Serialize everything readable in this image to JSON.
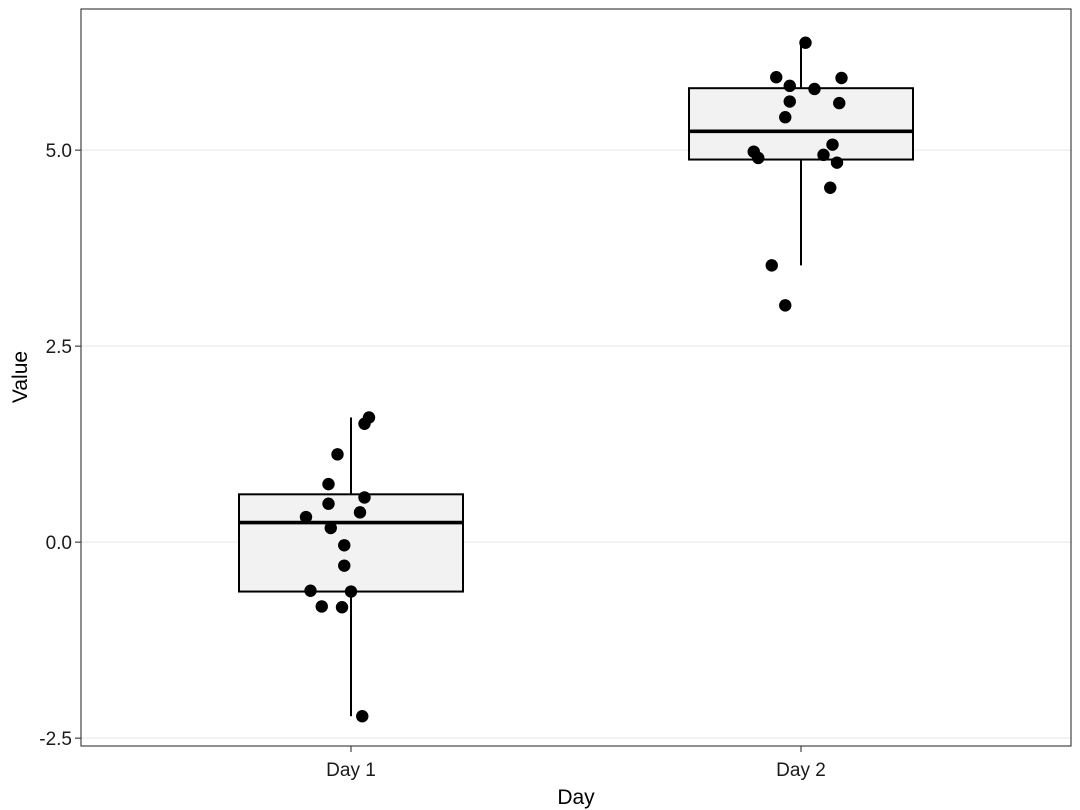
{
  "chart_data": {
    "type": "boxplot",
    "title": "",
    "xlabel": "Day",
    "ylabel": "Value",
    "categories": [
      "Day 1",
      "Day 2"
    ],
    "ylim": [
      -2.6,
      6.8
    ],
    "yticks": [
      -2.5,
      0.0,
      2.5,
      5.0
    ],
    "ytick_labels": [
      "-2.5",
      "0.0",
      "2.5",
      "5.0"
    ],
    "grid": true,
    "legend": "none",
    "box_fill": "#f2f2f2",
    "point_color": "#000000",
    "boxes": [
      {
        "category": "Day 1",
        "whisker_low": -2.22,
        "q1": -0.63,
        "median": 0.25,
        "q3": 0.61,
        "whisker_high": 1.59
      },
      {
        "category": "Day 2",
        "whisker_low": 3.53,
        "q1": 4.88,
        "median": 5.24,
        "q3": 5.79,
        "whisker_high": 6.37
      }
    ],
    "points": [
      {
        "category": "Day 1",
        "jitter": 0.04,
        "y": 1.59
      },
      {
        "category": "Day 1",
        "jitter": 0.03,
        "y": 1.51
      },
      {
        "category": "Day 1",
        "jitter": -0.03,
        "y": 1.12
      },
      {
        "category": "Day 1",
        "jitter": -0.05,
        "y": 0.74
      },
      {
        "category": "Day 1",
        "jitter": 0.03,
        "y": 0.57
      },
      {
        "category": "Day 1",
        "jitter": -0.05,
        "y": 0.49
      },
      {
        "category": "Day 1",
        "jitter": 0.02,
        "y": 0.38
      },
      {
        "category": "Day 1",
        "jitter": -0.1,
        "y": 0.32
      },
      {
        "category": "Day 1",
        "jitter": -0.045,
        "y": 0.18
      },
      {
        "category": "Day 1",
        "jitter": -0.015,
        "y": -0.04
      },
      {
        "category": "Day 1",
        "jitter": -0.015,
        "y": -0.3
      },
      {
        "category": "Day 1",
        "jitter": -0.09,
        "y": -0.62
      },
      {
        "category": "Day 1",
        "jitter": 0.0,
        "y": -0.63
      },
      {
        "category": "Day 1",
        "jitter": -0.065,
        "y": -0.82
      },
      {
        "category": "Day 1",
        "jitter": -0.02,
        "y": -0.83
      },
      {
        "category": "Day 1",
        "jitter": 0.025,
        "y": -2.22
      },
      {
        "category": "Day 2",
        "jitter": 0.01,
        "y": 6.37
      },
      {
        "category": "Day 2",
        "jitter": -0.055,
        "y": 5.93
      },
      {
        "category": "Day 2",
        "jitter": 0.09,
        "y": 5.92
      },
      {
        "category": "Day 2",
        "jitter": -0.025,
        "y": 5.82
      },
      {
        "category": "Day 2",
        "jitter": 0.03,
        "y": 5.78
      },
      {
        "category": "Day 2",
        "jitter": -0.025,
        "y": 5.62
      },
      {
        "category": "Day 2",
        "jitter": 0.085,
        "y": 5.6
      },
      {
        "category": "Day 2",
        "jitter": -0.035,
        "y": 5.42
      },
      {
        "category": "Day 2",
        "jitter": 0.07,
        "y": 5.07
      },
      {
        "category": "Day 2",
        "jitter": -0.105,
        "y": 4.98
      },
      {
        "category": "Day 2",
        "jitter": 0.05,
        "y": 4.94
      },
      {
        "category": "Day 2",
        "jitter": -0.095,
        "y": 4.9
      },
      {
        "category": "Day 2",
        "jitter": 0.08,
        "y": 4.84
      },
      {
        "category": "Day 2",
        "jitter": 0.065,
        "y": 4.52
      },
      {
        "category": "Day 2",
        "jitter": -0.065,
        "y": 3.53
      },
      {
        "category": "Day 2",
        "jitter": -0.035,
        "y": 3.02
      }
    ]
  }
}
